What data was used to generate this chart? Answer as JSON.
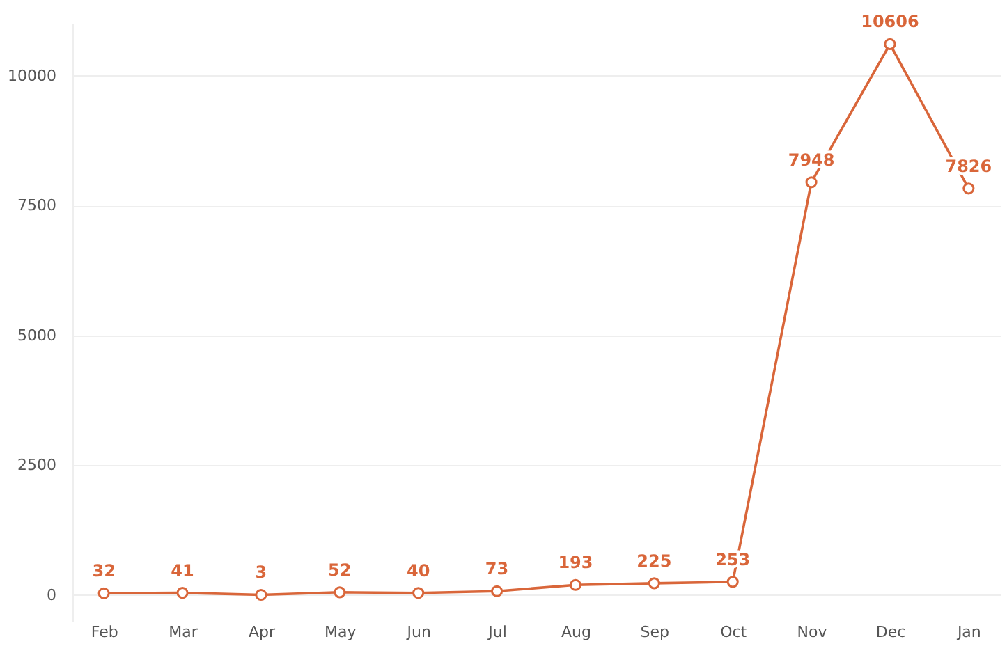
{
  "chart_data": {
    "type": "line",
    "categories": [
      "Feb",
      "Mar",
      "Apr",
      "May",
      "Jun",
      "Jul",
      "Aug",
      "Sep",
      "Oct",
      "Nov",
      "Dec",
      "Jan"
    ],
    "series": [
      {
        "color": "#d9663a",
        "values": [
          32,
          41,
          3,
          52,
          40,
          73,
          193,
          225,
          253,
          7948,
          10606,
          7826
        ]
      }
    ],
    "ylim": [
      -500,
      11000
    ],
    "yticks": [
      0,
      2500,
      5000,
      7500,
      10000
    ],
    "grid": "y",
    "marker": "circle",
    "data_labels": true,
    "legend": false
  }
}
